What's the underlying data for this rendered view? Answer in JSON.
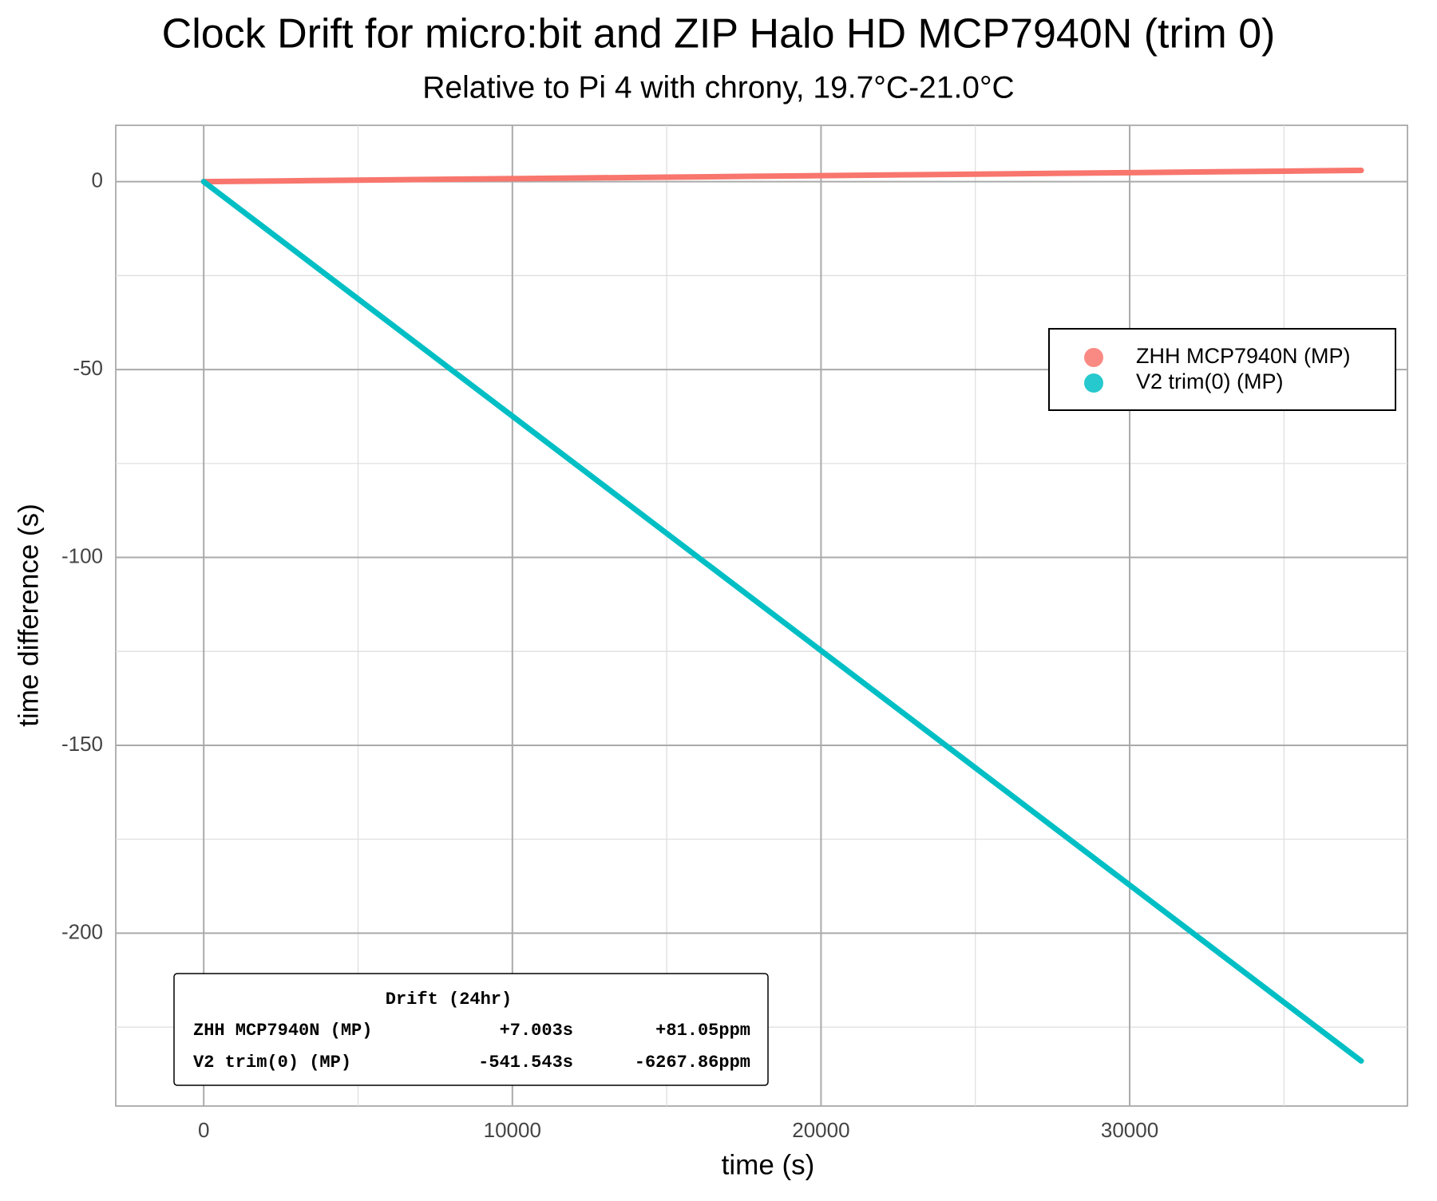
{
  "chart_data": {
    "type": "line",
    "title": "Clock Drift for micro:bit and ZIP Halo HD MCP7940N (trim 0)",
    "subtitle": "Relative to Pi 4 with chrony, 19.7°C-21.0°C",
    "x_label": "time (s)",
    "y_label": "time difference (s)",
    "x": [
      0,
      2500,
      5000,
      7500,
      10000,
      12500,
      15000,
      17500,
      20000,
      22500,
      25000,
      27500,
      30000,
      32500,
      35000,
      37500
    ],
    "series": [
      {
        "name": "ZHH MCP7940N (MP)",
        "color": "#f8766d",
        "values": [
          0,
          0.2,
          0.4,
          0.6,
          0.8,
          1.0,
          1.2,
          1.4,
          1.6,
          1.8,
          2.0,
          2.2,
          2.4,
          2.6,
          2.8,
          3.0
        ]
      },
      {
        "name": "V2 trim(0) (MP)",
        "color": "#00bfc4",
        "values": [
          0,
          -15.6,
          -31.2,
          -46.8,
          -62.4,
          -78,
          -93.6,
          -109.2,
          -124.8,
          -140.4,
          -156,
          -171.6,
          -187.2,
          -202.8,
          -218.4,
          -234
        ]
      }
    ],
    "xlim": [
      -2850,
      39000
    ],
    "ylim": [
      -246,
      15
    ],
    "xticks": [
      0,
      10000,
      20000,
      30000
    ],
    "yticks": [
      -200,
      -150,
      -100,
      -50,
      0
    ],
    "grid": true,
    "legend": "right",
    "annotation": {
      "title": "Drift (24hr)",
      "rows": [
        [
          "ZHH MCP7940N (MP)",
          "+7.003s",
          "+81.05ppm"
        ],
        [
          "V2 trim(0) (MP)",
          "-541.543s",
          "-6267.86ppm"
        ]
      ]
    }
  }
}
